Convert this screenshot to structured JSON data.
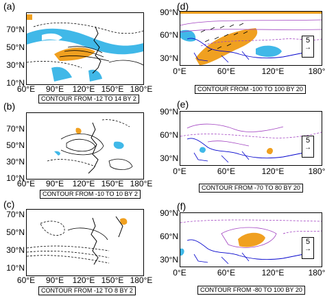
{
  "colors": {
    "positive": "#f0a020",
    "negative": "#40b8e8",
    "contour_left": "#000000",
    "contour_right": "#a040c0",
    "coast": "#0000cc",
    "vector": "#000000"
  },
  "panels": [
    {
      "label": "(a)",
      "y_ticks": [
        "70°N",
        "50°N",
        "30°N",
        "10°N"
      ],
      "x_ticks": [
        "60°E",
        "90°E",
        "120°E",
        "150°E",
        "180°E"
      ],
      "contour_info": "CONTOUR FROM -12 TO 14 BY 2"
    },
    {
      "label": "(b)",
      "y_ticks": [
        "70°N",
        "50°N",
        "30°N",
        "10°N"
      ],
      "x_ticks": [
        "60°E",
        "90°E",
        "120°E",
        "150°E",
        "180°E"
      ],
      "contour_info": "CONTOUR FROM -10 TO 10 BY 2"
    },
    {
      "label": "(c)",
      "y_ticks": [
        "70°N",
        "50°N",
        "30°N",
        "10°N"
      ],
      "x_ticks": [
        "60°E",
        "90°E",
        "120°E",
        "150°E",
        "180°E"
      ],
      "contour_info": "CONTOUR FROM -12 TO 8 BY 2"
    },
    {
      "label": "(d)",
      "y_ticks": [
        "90°N",
        "60°N",
        "30°N"
      ],
      "x_ticks": [
        "0°E",
        "60°E",
        "120°E",
        "180°E"
      ],
      "contour_info": "CONTOUR FROM -100 TO 100 BY 20",
      "ref_vector": "5"
    },
    {
      "label": "(e)",
      "y_ticks": [
        "90°N",
        "60°N",
        "30°N"
      ],
      "x_ticks": [
        "0°E",
        "60°E",
        "120°E",
        "180°E"
      ],
      "contour_info": "CONTOUR FROM -70 TO 80 BY 20",
      "ref_vector": "5"
    },
    {
      "label": "(f)",
      "y_ticks": [
        "90°N",
        "60°N",
        "30°N"
      ],
      "x_ticks": [
        "0°E",
        "60°E",
        "120°E",
        "180°E"
      ],
      "contour_info": "CONTOUR FROM -80 TO 100 BY 20",
      "ref_vector": "5"
    }
  ]
}
